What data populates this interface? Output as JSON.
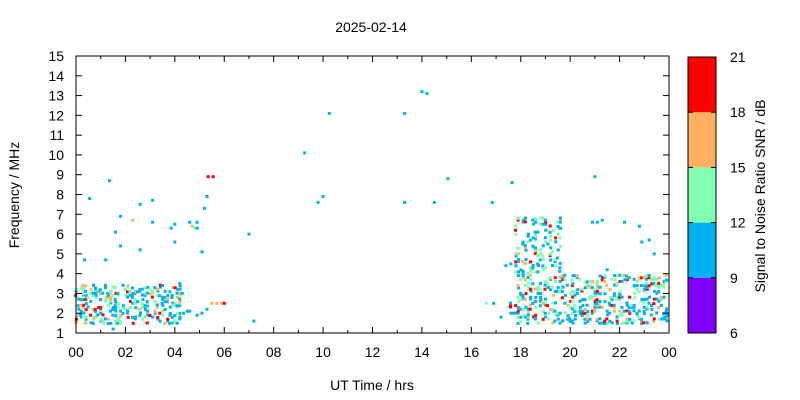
{
  "chart_data": {
    "type": "scatter",
    "title": "2025-02-14",
    "xlabel": "UT Time / hrs",
    "ylabel": "Frequency / MHz",
    "xlim": [
      0,
      24
    ],
    "ylim": [
      1,
      15
    ],
    "x_ticks": [
      "00",
      "02",
      "04",
      "06",
      "08",
      "10",
      "12",
      "14",
      "16",
      "18",
      "20",
      "22",
      "00"
    ],
    "y_ticks": [
      "1",
      "2",
      "3",
      "4",
      "5",
      "6",
      "7",
      "8",
      "9",
      "10",
      "11",
      "12",
      "13",
      "14",
      "15"
    ],
    "grid": false,
    "colorbar": {
      "label": "Signal to Noise Ratio SNR / dB",
      "range": [
        6,
        21
      ],
      "ticks": [
        "6",
        "9",
        "12",
        "15",
        "18",
        "21"
      ],
      "bands": [
        {
          "min": 6,
          "max": 9,
          "color": "#8000ff"
        },
        {
          "min": 9,
          "max": 12,
          "color": "#00b0f0"
        },
        {
          "min": 12,
          "max": 15,
          "color": "#80ffb0"
        },
        {
          "min": 15,
          "max": 18,
          "color": "#ffb060"
        },
        {
          "min": 18,
          "max": 21,
          "color": "#ff0000"
        }
      ]
    },
    "points": [
      [
        0.35,
        4.7,
        10
      ],
      [
        0.55,
        7.8,
        10
      ],
      [
        1.2,
        4.7,
        10
      ],
      [
        1.35,
        8.7,
        10
      ],
      [
        1.6,
        6.1,
        10
      ],
      [
        1.8,
        6.9,
        10
      ],
      [
        1.8,
        5.4,
        10
      ],
      [
        2.3,
        6.7,
        16
      ],
      [
        2.6,
        7.5,
        10
      ],
      [
        2.6,
        5.2,
        10
      ],
      [
        3.1,
        7.7,
        10
      ],
      [
        3.1,
        6.6,
        10
      ],
      [
        3.85,
        6.3,
        10
      ],
      [
        4.0,
        6.5,
        10
      ],
      [
        4.0,
        5.6,
        10
      ],
      [
        4.3,
        3.0,
        10
      ],
      [
        4.2,
        3.5,
        10
      ],
      [
        4.6,
        6.6,
        10
      ],
      [
        4.7,
        6.4,
        16
      ],
      [
        4.8,
        6.3,
        13
      ],
      [
        4.9,
        6.6,
        10
      ],
      [
        4.9,
        6.3,
        10
      ],
      [
        5.1,
        5.1,
        10
      ],
      [
        5.3,
        7.9,
        10
      ],
      [
        5.35,
        8.9,
        19
      ],
      [
        5.55,
        8.9,
        19
      ],
      [
        5.2,
        7.3,
        10
      ],
      [
        7.0,
        6.0,
        10
      ],
      [
        7.2,
        1.6,
        10
      ],
      [
        9.25,
        10.1,
        10
      ],
      [
        9.8,
        7.6,
        10
      ],
      [
        10.0,
        7.9,
        10
      ],
      [
        10.25,
        12.1,
        10
      ],
      [
        13.3,
        12.1,
        10
      ],
      [
        13.3,
        7.6,
        10
      ],
      [
        14.0,
        13.2,
        10
      ],
      [
        14.2,
        13.1,
        10
      ],
      [
        14.5,
        7.6,
        10
      ],
      [
        15.05,
        8.8,
        10
      ],
      [
        16.85,
        7.6,
        10
      ],
      [
        17.65,
        8.6,
        10
      ],
      [
        17.4,
        4.4,
        10
      ],
      [
        17.6,
        4.5,
        10
      ],
      [
        18.6,
        6.6,
        10
      ],
      [
        18.9,
        6.5,
        10
      ],
      [
        19.5,
        6.6,
        13
      ],
      [
        19.6,
        6.6,
        10
      ],
      [
        21.0,
        8.9,
        10
      ],
      [
        20.9,
        6.6,
        10
      ],
      [
        21.1,
        6.6,
        10
      ],
      [
        21.3,
        6.7,
        10
      ],
      [
        21.5,
        4.2,
        10
      ],
      [
        21.8,
        3.9,
        10
      ],
      [
        22.2,
        6.6,
        10
      ],
      [
        22.8,
        6.4,
        10
      ],
      [
        22.9,
        5.6,
        10
      ],
      [
        23.2,
        5.7,
        10
      ],
      [
        23.4,
        5.0,
        10
      ],
      [
        17.2,
        1.8,
        10
      ],
      [
        16.6,
        2.5,
        13
      ],
      [
        16.9,
        2.5,
        10
      ],
      [
        1.5,
        1.2,
        10
      ],
      [
        4.35,
        2.0,
        10
      ],
      [
        4.6,
        2.1,
        10
      ],
      [
        4.9,
        1.9,
        10
      ],
      [
        5.1,
        2.0,
        10
      ],
      [
        5.3,
        2.2,
        10
      ],
      [
        5.5,
        2.5,
        16
      ],
      [
        5.7,
        2.5,
        16
      ],
      [
        5.9,
        2.5,
        16
      ],
      [
        6.0,
        2.5,
        19
      ],
      [
        3.5,
        3.4,
        10
      ],
      [
        4.1,
        2.0,
        13
      ],
      [
        4.5,
        2.1,
        10
      ]
    ],
    "clusters": [
      {
        "x_range": [
          0.0,
          4.3
        ],
        "y_range": [
          1.5,
          3.5
        ],
        "color_weights": [
          [
            10,
            0.55
          ],
          [
            13,
            0.25
          ],
          [
            16,
            0.12
          ],
          [
            19,
            0.08
          ]
        ],
        "density": 0.55,
        "seed": 7
      },
      {
        "x_range": [
          17.9,
          24.0
        ],
        "y_range": [
          1.5,
          4.0
        ],
        "color_weights": [
          [
            10,
            0.5
          ],
          [
            13,
            0.25
          ],
          [
            16,
            0.13
          ],
          [
            19,
            0.12
          ]
        ],
        "density": 0.55,
        "seed": 11
      },
      {
        "x_range": [
          17.8,
          19.7
        ],
        "y_range": [
          4.0,
          6.8
        ],
        "color_weights": [
          [
            10,
            0.6
          ],
          [
            13,
            0.32
          ],
          [
            16,
            0.04
          ],
          [
            19,
            0.04
          ]
        ],
        "density": 0.35,
        "seed": 19
      },
      {
        "x_range": [
          17.6,
          18.0
        ],
        "y_range": [
          2.0,
          2.6
        ],
        "color_weights": [
          [
            10,
            0.4
          ],
          [
            19,
            0.6
          ]
        ],
        "density": 0.6,
        "seed": 23
      }
    ]
  }
}
